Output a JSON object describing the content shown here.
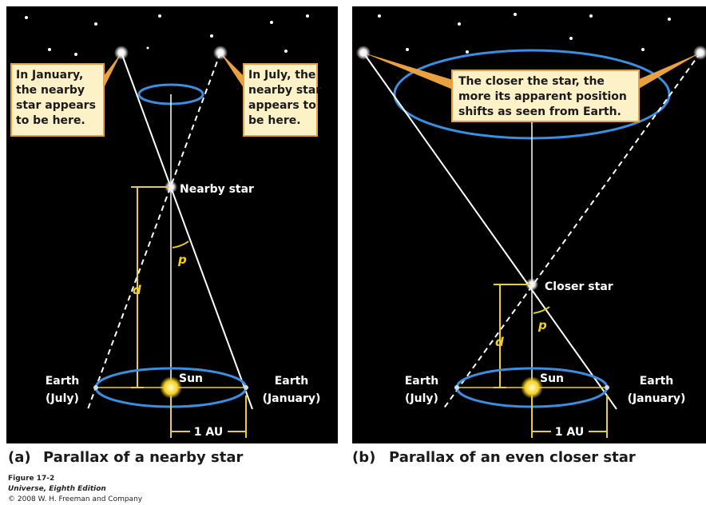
{
  "panels": [
    {
      "label": "(a)",
      "title": "Parallax of a nearby star",
      "callouts": [
        [
          "In January,",
          "the nearby",
          "star appears",
          "to be here."
        ],
        [
          "In July, the",
          "nearby star",
          "appears to",
          "be here."
        ]
      ],
      "star_label": "Nearby star",
      "distance_label": "d",
      "angle_label": "p",
      "sun_label": "Sun",
      "earth_left": [
        "Earth",
        "(July)"
      ],
      "earth_right": [
        "Earth",
        "(January)"
      ],
      "baseline_label": "1 AU"
    },
    {
      "label": "(b)",
      "title": "Parallax of an even closer star",
      "callouts": [
        [
          "The closer the star, the",
          "more its apparent position",
          "shifts as seen from Earth."
        ]
      ],
      "star_label": "Closer star",
      "distance_label": "d",
      "angle_label": "p",
      "sun_label": "Sun",
      "earth_left": [
        "Earth",
        "(July)"
      ],
      "earth_right": [
        "Earth",
        "(January)"
      ],
      "baseline_label": "1 AU"
    }
  ],
  "footer": {
    "figure": "Figure 17-2",
    "book": "Universe, Eighth Edition",
    "copyright": "© 2008 W. H. Freeman and Company"
  }
}
